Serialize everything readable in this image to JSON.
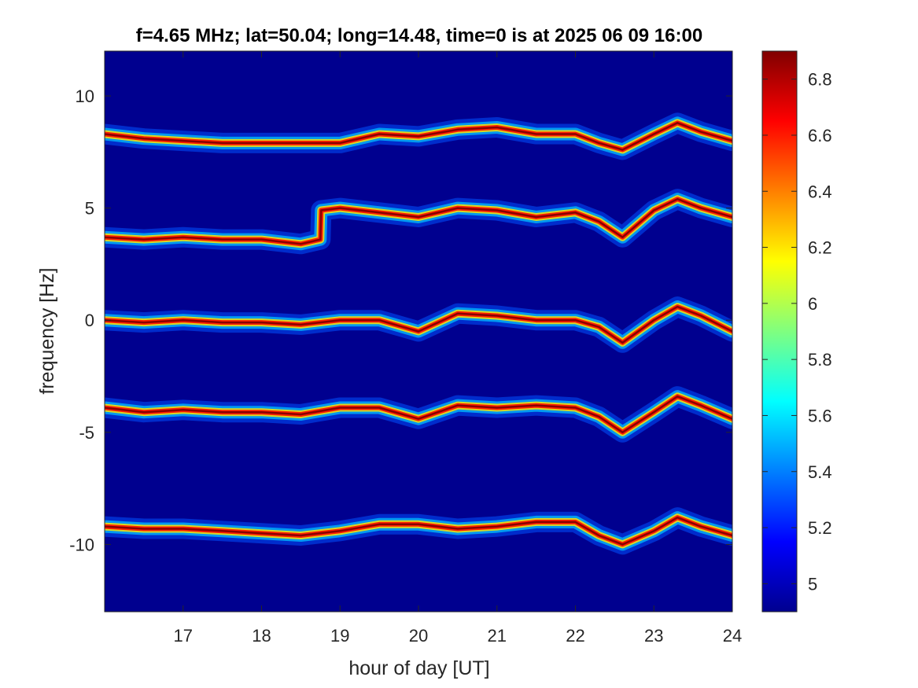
{
  "chart_data": {
    "type": "heatmap",
    "title": "f=4.65 MHz;  lat=50.04; long=14.48, time=0 is at 2025 06 09 16:00",
    "xlabel": "hour of day [UT]",
    "ylabel": "frequency [Hz]",
    "xlim": [
      16,
      24
    ],
    "ylim": [
      -13,
      12
    ],
    "x_ticks": [
      17,
      18,
      19,
      20,
      21,
      22,
      23,
      24
    ],
    "y_ticks": [
      10,
      5,
      0,
      -5,
      -10
    ],
    "colormap": "jet",
    "colorbar": {
      "range": [
        4.9,
        6.9
      ],
      "ticks": [
        "6.8",
        "6.6",
        "6.4",
        "6.2",
        "6",
        "5.8",
        "5.6",
        "5.4",
        "5.2",
        "5"
      ],
      "tick_values": [
        6.8,
        6.6,
        6.4,
        6.2,
        6.0,
        5.8,
        5.6,
        5.4,
        5.2,
        5.0
      ]
    },
    "background_color": "#00008f",
    "traces": [
      {
        "x": [
          16.0,
          16.5,
          17.0,
          17.5,
          18.0,
          18.5,
          19.0,
          19.5,
          20.0,
          20.5,
          21.0,
          21.5,
          22.0,
          22.3,
          22.6,
          23.0,
          23.3,
          23.6,
          24.0
        ],
        "y": [
          8.3,
          8.1,
          8.0,
          7.9,
          7.9,
          7.9,
          7.9,
          8.3,
          8.2,
          8.5,
          8.6,
          8.3,
          8.3,
          7.9,
          7.6,
          8.3,
          8.8,
          8.4,
          8.0
        ]
      },
      {
        "x": [
          16.0,
          16.5,
          17.0,
          17.5,
          18.0,
          18.5,
          18.75,
          18.76,
          19.0,
          19.5,
          20.0,
          20.5,
          21.0,
          21.5,
          22.0,
          22.3,
          22.6,
          23.0,
          23.3,
          23.6,
          24.0
        ],
        "y": [
          3.7,
          3.6,
          3.7,
          3.6,
          3.6,
          3.4,
          3.6,
          4.9,
          5.0,
          4.8,
          4.6,
          5.0,
          4.9,
          4.6,
          4.8,
          4.4,
          3.7,
          4.9,
          5.4,
          5.0,
          4.6
        ]
      },
      {
        "x": [
          16.0,
          16.5,
          17.0,
          17.5,
          18.0,
          18.5,
          19.0,
          19.5,
          20.0,
          20.5,
          21.0,
          21.5,
          22.0,
          22.3,
          22.6,
          23.0,
          23.3,
          23.6,
          24.0
        ],
        "y": [
          0.0,
          -0.1,
          0.0,
          -0.1,
          -0.1,
          -0.2,
          0.0,
          0.0,
          -0.5,
          0.3,
          0.2,
          0.0,
          0.0,
          -0.3,
          -1.0,
          0.0,
          0.6,
          0.2,
          -0.5
        ]
      },
      {
        "x": [
          16.0,
          16.5,
          17.0,
          17.5,
          18.0,
          18.5,
          19.0,
          19.5,
          20.0,
          20.5,
          21.0,
          21.5,
          22.0,
          22.3,
          22.6,
          23.0,
          23.3,
          23.6,
          24.0
        ],
        "y": [
          -3.9,
          -4.1,
          -4.0,
          -4.1,
          -4.1,
          -4.2,
          -3.9,
          -3.9,
          -4.4,
          -3.8,
          -3.9,
          -3.8,
          -3.9,
          -4.3,
          -5.0,
          -4.1,
          -3.4,
          -3.8,
          -4.4
        ]
      },
      {
        "x": [
          16.0,
          16.5,
          17.0,
          17.5,
          18.0,
          18.5,
          19.0,
          19.5,
          20.0,
          20.5,
          21.0,
          21.5,
          22.0,
          22.3,
          22.6,
          23.0,
          23.3,
          23.6,
          24.0
        ],
        "y": [
          -9.2,
          -9.3,
          -9.3,
          -9.4,
          -9.5,
          -9.6,
          -9.4,
          -9.1,
          -9.1,
          -9.3,
          -9.2,
          -9.0,
          -9.0,
          -9.6,
          -10.0,
          -9.4,
          -8.8,
          -9.2,
          -9.6
        ]
      }
    ]
  }
}
